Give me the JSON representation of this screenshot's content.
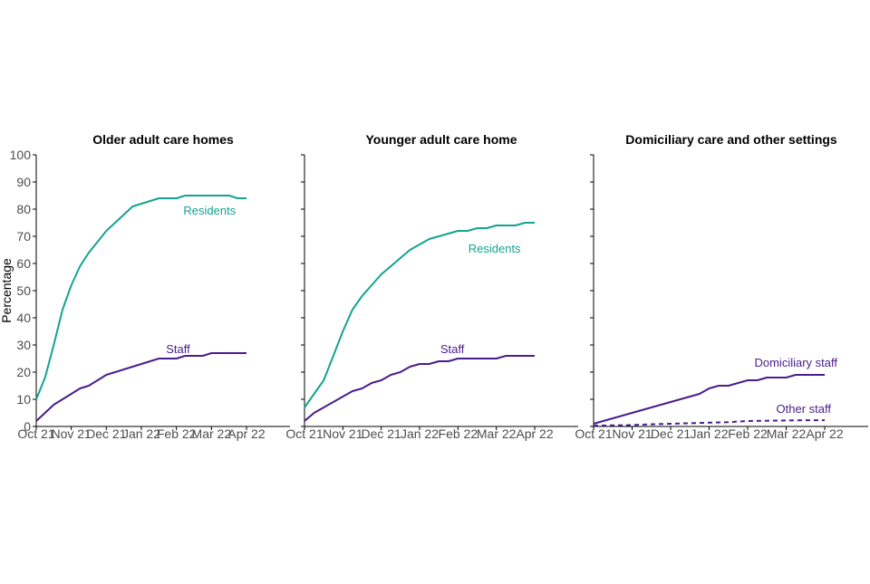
{
  "colors": {
    "residents": "#13a38f",
    "staff": "#4a1d8c",
    "axis": "#000000",
    "tick_text": "#4d4d4d"
  },
  "chart_data": {
    "type": "line",
    "ylabel": "Percentage",
    "ylim": [
      0,
      100
    ],
    "yticks": [
      0,
      10,
      20,
      30,
      40,
      50,
      60,
      70,
      80,
      90,
      100
    ],
    "x_tick_labels": [
      "Oct 21",
      "Nov 21",
      "Dec 21",
      "Jan 22",
      "Feb 22",
      "Mar 22",
      "Apr 22"
    ],
    "x_range": [
      0,
      6
    ],
    "grid": false,
    "legend": "none (series labelled directly on lines)",
    "panels": [
      {
        "title": "Older adult care homes",
        "show_y_tick_labels": true,
        "series": [
          {
            "name": "Residents",
            "color_key": "residents",
            "dash": false,
            "x": [
              0,
              0.25,
              0.5,
              0.75,
              1.0,
              1.25,
              1.5,
              1.75,
              2.0,
              2.25,
              2.5,
              2.75,
              3.0,
              3.25,
              3.5,
              3.75,
              4.0,
              4.25,
              4.5,
              4.75,
              5.0,
              5.25,
              5.5,
              5.75,
              6.0
            ],
            "y": [
              10,
              18,
              30,
              43,
              52,
              59,
              64,
              68,
              72,
              75,
              78,
              81,
              82,
              83,
              84,
              84,
              84,
              85,
              85,
              85,
              85,
              85,
              85,
              84,
              84
            ],
            "label_at": [
              5.0,
              78
            ]
          },
          {
            "name": "Staff",
            "color_key": "staff",
            "dash": false,
            "x": [
              0,
              0.25,
              0.5,
              0.75,
              1.0,
              1.25,
              1.5,
              1.75,
              2.0,
              2.25,
              2.5,
              2.75,
              3.0,
              3.25,
              3.5,
              3.75,
              4.0,
              4.25,
              4.5,
              4.75,
              5.0,
              5.25,
              5.5,
              5.75,
              6.0
            ],
            "y": [
              2,
              5,
              8,
              10,
              12,
              14,
              15,
              17,
              19,
              20,
              21,
              22,
              23,
              24,
              25,
              25,
              25,
              26,
              26,
              26,
              27,
              27,
              27,
              27,
              27
            ],
            "label_at": [
              4.1,
              27
            ]
          }
        ]
      },
      {
        "title": "Younger adult care home",
        "show_y_tick_labels": false,
        "series": [
          {
            "name": "Residents",
            "color_key": "residents",
            "dash": false,
            "x": [
              0,
              0.25,
              0.5,
              0.75,
              1.0,
              1.25,
              1.5,
              1.75,
              2.0,
              2.25,
              2.5,
              2.75,
              3.0,
              3.25,
              3.5,
              3.75,
              4.0,
              4.25,
              4.5,
              4.75,
              5.0,
              5.25,
              5.5,
              5.75,
              6.0
            ],
            "y": [
              7,
              12,
              17,
              26,
              35,
              43,
              48,
              52,
              56,
              59,
              62,
              65,
              67,
              69,
              70,
              71,
              72,
              72,
              73,
              73,
              74,
              74,
              74,
              75,
              75
            ],
            "label_at": [
              5.0,
              64
            ]
          },
          {
            "name": "Staff",
            "color_key": "staff",
            "dash": false,
            "x": [
              0,
              0.25,
              0.5,
              0.75,
              1.0,
              1.25,
              1.5,
              1.75,
              2.0,
              2.25,
              2.5,
              2.75,
              3.0,
              3.25,
              3.5,
              3.75,
              4.0,
              4.25,
              4.5,
              4.75,
              5.0,
              5.25,
              5.5,
              5.75,
              6.0
            ],
            "y": [
              2,
              5,
              7,
              9,
              11,
              13,
              14,
              16,
              17,
              19,
              20,
              22,
              23,
              23,
              24,
              24,
              25,
              25,
              25,
              25,
              25,
              26,
              26,
              26,
              26
            ],
            "label_at": [
              3.9,
              27
            ]
          }
        ]
      },
      {
        "title": "Domiciliary care and other settings",
        "show_y_tick_labels": false,
        "series": [
          {
            "name": "Domiciliary staff",
            "color_key": "staff",
            "dash": false,
            "x": [
              0,
              0.25,
              0.5,
              0.75,
              1.0,
              1.25,
              1.5,
              1.75,
              2.0,
              2.25,
              2.5,
              2.75,
              3.0,
              3.25,
              3.5,
              3.75,
              4.0,
              4.25,
              4.5,
              4.75,
              5.0,
              5.25,
              5.5,
              5.75,
              6.0
            ],
            "y": [
              1,
              2,
              3,
              4,
              5,
              6,
              7,
              8,
              9,
              10,
              11,
              12,
              14,
              15,
              15,
              16,
              17,
              17,
              18,
              18,
              18,
              19,
              19,
              19,
              19
            ],
            "label_at": [
              5.3,
              22
            ]
          },
          {
            "name": "Other staff",
            "color_key": "staff",
            "dash": true,
            "x": [
              0,
              0.5,
              1.0,
              1.5,
              2.0,
              2.5,
              3.0,
              3.5,
              4.0,
              4.5,
              5.0,
              5.5,
              6.0
            ],
            "y": [
              0.3,
              0.4,
              0.5,
              0.8,
              1.0,
              1.2,
              1.4,
              1.6,
              2.0,
              2.1,
              2.2,
              2.3,
              2.3
            ],
            "label_at": [
              5.5,
              5
            ]
          }
        ]
      }
    ]
  }
}
